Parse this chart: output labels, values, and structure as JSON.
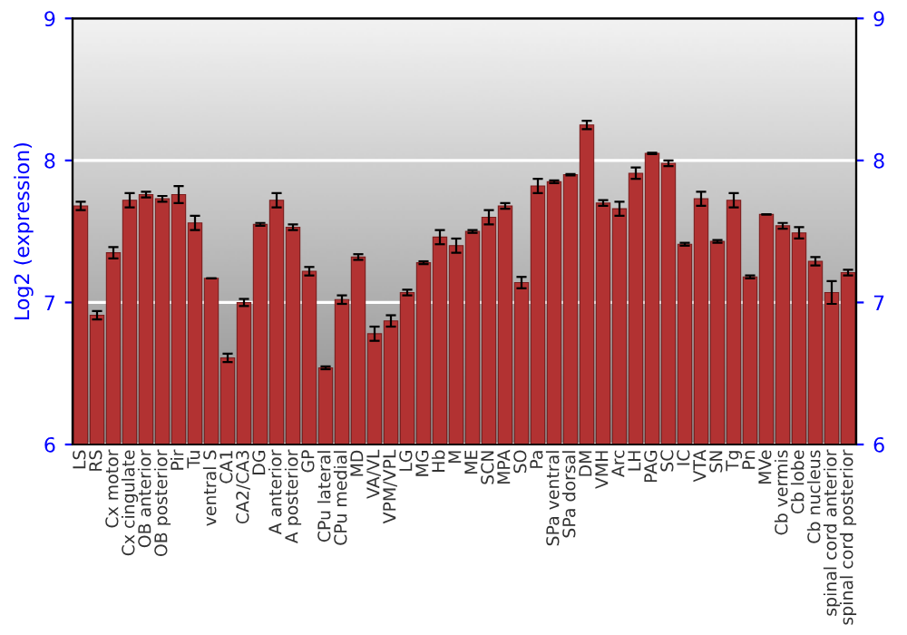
{
  "chart_data": {
    "type": "bar",
    "ylabel": "Log2 (expression)",
    "categories": [
      "LS",
      "RS",
      "Cx motor",
      "Cx cingulate",
      "OB anterior",
      "OB posterior",
      "Pir",
      "Tu",
      "ventral S",
      "CA1",
      "CA2/CA3",
      "DG",
      "A anterior",
      "A posterior",
      "GP",
      "CPu lateral",
      "CPu medial",
      "MD",
      "VA/VL",
      "VPM/VPL",
      "LG",
      "MG",
      "Hb",
      "M",
      "ME",
      "SCN",
      "MPA",
      "SO",
      "Pa",
      "SPa ventral",
      "SPa dorsal",
      "DM",
      "VMH",
      "Arc",
      "LH",
      "PAG",
      "SC",
      "IC",
      "VTA",
      "SN",
      "Tg",
      "Pn",
      "MVe",
      "Cb vermis",
      "Cb lobe",
      "Cb nucleus",
      "spinal cord anterior",
      "spinal cord posterior"
    ],
    "series": [
      {
        "color": "#b23232",
        "values": [
          7.68,
          6.91,
          7.35,
          7.72,
          7.76,
          7.73,
          7.76,
          7.56,
          7.17,
          6.61,
          7.0,
          7.55,
          7.72,
          7.53,
          7.22,
          6.54,
          7.02,
          7.32,
          6.78,
          6.87,
          7.07,
          7.28,
          7.46,
          7.4,
          7.5,
          7.6,
          7.68,
          7.14,
          7.82,
          7.85,
          7.9,
          8.25,
          7.7,
          7.66,
          7.91,
          8.05,
          7.98,
          7.41,
          7.73,
          7.43,
          7.72,
          7.18,
          7.62,
          7.54,
          7.49,
          7.29,
          7.07,
          7.21
        ],
        "errors": [
          0.03,
          0.03,
          0.04,
          0.05,
          0.02,
          0.02,
          0.06,
          0.05,
          0,
          0.03,
          0.025,
          0.01,
          0.05,
          0.02,
          0.03,
          0.01,
          0.03,
          0.02,
          0.05,
          0.04,
          0.02,
          0.01,
          0.05,
          0.05,
          0.01,
          0.05,
          0.02,
          0.04,
          0.05,
          0.01,
          0.005,
          0.03,
          0.02,
          0.05,
          0.04,
          0.005,
          0.02,
          0.01,
          0.05,
          0.01,
          0.05,
          0.01,
          0,
          0.02,
          0.04,
          0.03,
          0.08,
          0.02
        ]
      }
    ],
    "ylim": [
      6,
      9
    ],
    "yticks": [
      6,
      7,
      8,
      9
    ],
    "y2lim": [
      6,
      9
    ],
    "y2ticks": [
      6,
      7,
      8,
      9
    ],
    "grid": "y",
    "legend": false
  }
}
